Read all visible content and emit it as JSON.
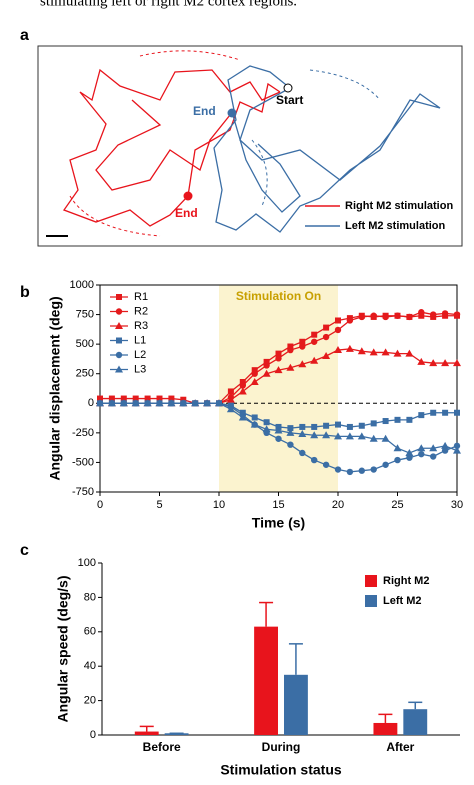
{
  "caption": "stimulating left or right M2 cortex regions.",
  "panel_a": {
    "label": "a",
    "start": "Start",
    "end_left": "End",
    "end_right": "End",
    "legend": [
      "Right M2 stimulation",
      "Left M2 stimulation"
    ]
  },
  "chart_data": [
    {
      "type": "line",
      "panel": "b",
      "xlabel": "Time (s)",
      "ylabel": "Angular displacement (deg)",
      "annotation": "Stimulation On",
      "shade": [
        10,
        20
      ],
      "reference_line": 0,
      "legend": "upper left",
      "xlim": [
        0,
        30
      ],
      "xticks": [
        0,
        5,
        10,
        15,
        20,
        25,
        30
      ],
      "ylim": [
        -750,
        1000
      ],
      "yticks": [
        -750,
        -500,
        -250,
        0,
        250,
        500,
        750,
        1000
      ],
      "x": [
        0,
        1,
        2,
        3,
        4,
        5,
        6,
        7,
        8,
        9,
        10,
        11,
        12,
        13,
        14,
        15,
        16,
        17,
        18,
        19,
        20,
        21,
        22,
        23,
        24,
        25,
        26,
        27,
        28,
        29,
        30
      ],
      "series": [
        {
          "name": "R1",
          "color": "#e41a1c",
          "marker": "square",
          "values": [
            40,
            40,
            40,
            40,
            40,
            40,
            40,
            30,
            0,
            0,
            0,
            100,
            180,
            280,
            350,
            420,
            480,
            520,
            580,
            640,
            700,
            720,
            740,
            730,
            740,
            740,
            730,
            740,
            730,
            740,
            740
          ]
        },
        {
          "name": "R2",
          "color": "#e41a1c",
          "marker": "circle",
          "values": [
            0,
            0,
            0,
            0,
            0,
            0,
            0,
            0,
            0,
            0,
            0,
            50,
            150,
            250,
            320,
            380,
            450,
            480,
            520,
            560,
            620,
            700,
            730,
            740,
            730,
            740,
            730,
            770,
            750,
            760,
            750
          ]
        },
        {
          "name": "R3",
          "color": "#e41a1c",
          "marker": "triangle",
          "values": [
            0,
            0,
            0,
            0,
            0,
            0,
            0,
            0,
            0,
            0,
            0,
            30,
            100,
            180,
            250,
            280,
            300,
            330,
            360,
            400,
            450,
            460,
            440,
            430,
            430,
            420,
            420,
            350,
            340,
            340,
            340
          ]
        },
        {
          "name": "L1",
          "color": "#3b6ea5",
          "marker": "square",
          "values": [
            0,
            0,
            0,
            0,
            0,
            0,
            0,
            0,
            0,
            0,
            0,
            -20,
            -80,
            -120,
            -160,
            -200,
            -210,
            -200,
            -200,
            -190,
            -180,
            -200,
            -190,
            -170,
            -150,
            -140,
            -140,
            -100,
            -80,
            -80,
            -80
          ]
        },
        {
          "name": "L2",
          "color": "#3b6ea5",
          "marker": "circle",
          "values": [
            0,
            0,
            0,
            0,
            0,
            0,
            0,
            0,
            0,
            0,
            0,
            -30,
            -100,
            -180,
            -250,
            -300,
            -350,
            -420,
            -480,
            -520,
            -560,
            -580,
            -570,
            -560,
            -520,
            -480,
            -460,
            -430,
            -450,
            -400,
            -360
          ]
        },
        {
          "name": "L3",
          "color": "#3b6ea5",
          "marker": "triangle",
          "values": [
            0,
            0,
            0,
            0,
            0,
            0,
            0,
            0,
            0,
            0,
            0,
            -50,
            -120,
            -180,
            -220,
            -230,
            -250,
            -260,
            -270,
            -270,
            -280,
            -280,
            -280,
            -300,
            -300,
            -380,
            -420,
            -380,
            -380,
            -360,
            -400
          ]
        }
      ]
    },
    {
      "type": "bar",
      "panel": "c",
      "xlabel": "Stimulation status",
      "ylabel": "Angular speed (deg/s)",
      "legend": "upper right",
      "categories": [
        "Before",
        "During",
        "After"
      ],
      "ylim": [
        0,
        100
      ],
      "yticks": [
        0,
        20,
        40,
        60,
        80,
        100
      ],
      "series": [
        {
          "name": "Right M2",
          "color": "#e8141c",
          "values": [
            2,
            63,
            7
          ],
          "errors": [
            3,
            14,
            5
          ]
        },
        {
          "name": "Left M2",
          "color": "#3b6ea5",
          "values": [
            1,
            35,
            15
          ],
          "errors": [
            0,
            18,
            4
          ]
        }
      ]
    }
  ]
}
